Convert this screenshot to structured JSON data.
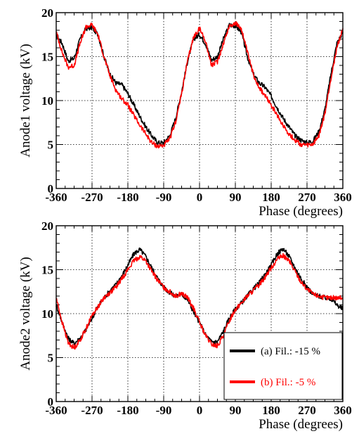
{
  "chart_data": [
    {
      "type": "line",
      "ylabel": "Anode1 voltage (kV)",
      "xlabel": "Phase (degrees)",
      "xlim": [
        -360,
        360
      ],
      "ylim": [
        0,
        20
      ],
      "xticks": [
        "-360",
        "-270",
        "-180",
        "-90",
        "0",
        "90",
        "180",
        "270",
        "360"
      ],
      "yticks": [
        "0",
        "5",
        "10",
        "15",
        "20"
      ],
      "grid": true,
      "series": [
        {
          "name": "(a) Fil.: -15 %",
          "color": "#000000",
          "x": [
            -360,
            -345,
            -330,
            -315,
            -300,
            -285,
            -270,
            -255,
            -240,
            -225,
            -210,
            -195,
            -180,
            -165,
            -150,
            -135,
            -120,
            -105,
            -90,
            -75,
            -60,
            -45,
            -30,
            -15,
            0,
            15,
            30,
            45,
            60,
            75,
            90,
            105,
            120,
            135,
            150,
            165,
            180,
            195,
            210,
            225,
            240,
            255,
            270,
            285,
            300,
            315,
            330,
            345,
            360
          ],
          "y": [
            17.5,
            16.5,
            14.5,
            14.8,
            17.0,
            18.2,
            18.3,
            17.5,
            15.0,
            13.0,
            12.0,
            11.8,
            10.8,
            9.5,
            8.2,
            7.0,
            6.0,
            5.2,
            5.2,
            6.0,
            8.0,
            11.0,
            14.5,
            17.0,
            17.5,
            16.5,
            14.6,
            15.0,
            17.0,
            18.6,
            18.5,
            17.8,
            15.0,
            13.0,
            12.0,
            11.5,
            10.5,
            9.2,
            8.0,
            7.0,
            6.0,
            5.5,
            5.2,
            5.4,
            6.5,
            9.0,
            13.0,
            16.5,
            17.8
          ]
        },
        {
          "name": "(b) Fil.: -5 %",
          "color": "#ff0000",
          "x": [
            -360,
            -345,
            -330,
            -315,
            -300,
            -285,
            -270,
            -255,
            -240,
            -225,
            -210,
            -195,
            -180,
            -165,
            -150,
            -135,
            -120,
            -105,
            -90,
            -75,
            -60,
            -45,
            -30,
            -15,
            0,
            15,
            30,
            45,
            60,
            75,
            90,
            105,
            120,
            135,
            150,
            165,
            180,
            195,
            210,
            225,
            240,
            255,
            270,
            285,
            300,
            315,
            330,
            345,
            360
          ],
          "y": [
            17.8,
            15.5,
            13.8,
            14.0,
            16.5,
            18.4,
            18.6,
            17.5,
            15.0,
            12.8,
            11.2,
            10.2,
            9.5,
            8.3,
            7.2,
            6.2,
            5.2,
            4.8,
            4.9,
            5.6,
            7.6,
            10.8,
            14.5,
            17.2,
            18.2,
            16.8,
            14.0,
            14.4,
            16.5,
            18.5,
            18.8,
            18.2,
            15.5,
            13.0,
            11.5,
            10.5,
            9.5,
            8.3,
            7.2,
            6.2,
            5.5,
            5.0,
            4.9,
            5.0,
            6.0,
            8.5,
            12.5,
            16.0,
            18.2
          ]
        }
      ]
    },
    {
      "type": "line",
      "ylabel": "Anode2 voltage (kV)",
      "xlabel": "Phase (degrees)",
      "xlim": [
        -360,
        360
      ],
      "ylim": [
        0,
        20
      ],
      "xticks": [
        "-360",
        "-270",
        "-180",
        "-90",
        "0",
        "90",
        "180",
        "270",
        "360"
      ],
      "yticks": [
        "0",
        "5",
        "10",
        "15",
        "20"
      ],
      "grid": true,
      "legend": "bottom-right",
      "series": [
        {
          "name": "(a) Fil.: -15 %",
          "color": "#000000",
          "x": [
            -360,
            -345,
            -330,
            -315,
            -300,
            -285,
            -270,
            -255,
            -240,
            -225,
            -210,
            -195,
            -180,
            -165,
            -150,
            -135,
            -120,
            -105,
            -90,
            -75,
            -60,
            -45,
            -30,
            -15,
            0,
            15,
            30,
            45,
            60,
            75,
            90,
            105,
            120,
            135,
            150,
            165,
            180,
            195,
            210,
            225,
            240,
            255,
            270,
            285,
            300,
            315,
            330,
            345,
            360
          ],
          "y": [
            11.0,
            9.0,
            7.2,
            6.6,
            7.2,
            8.2,
            9.5,
            10.8,
            11.8,
            12.6,
            13.3,
            14.3,
            15.5,
            16.8,
            17.3,
            16.5,
            15.2,
            14.0,
            13.0,
            12.4,
            12.0,
            12.2,
            11.6,
            10.2,
            9.0,
            7.6,
            6.8,
            6.8,
            8.0,
            9.5,
            10.5,
            11.2,
            12.0,
            12.8,
            13.5,
            14.5,
            15.5,
            16.8,
            17.4,
            16.5,
            15.2,
            14.0,
            13.0,
            12.2,
            12.0,
            11.8,
            11.7,
            11.0,
            10.5
          ]
        },
        {
          "name": "(b) Fil.: -5 %",
          "color": "#ff0000",
          "x": [
            -360,
            -345,
            -330,
            -315,
            -300,
            -285,
            -270,
            -255,
            -240,
            -225,
            -210,
            -195,
            -180,
            -165,
            -150,
            -135,
            -120,
            -105,
            -90,
            -75,
            -60,
            -45,
            -30,
            -15,
            0,
            15,
            30,
            45,
            60,
            75,
            90,
            105,
            120,
            135,
            150,
            165,
            180,
            195,
            210,
            225,
            240,
            255,
            270,
            285,
            300,
            315,
            330,
            345,
            360
          ],
          "y": [
            11.8,
            9.0,
            6.7,
            6.1,
            7.0,
            8.3,
            9.8,
            10.8,
            11.8,
            12.4,
            13.0,
            14.0,
            15.0,
            16.0,
            16.5,
            16.0,
            14.8,
            13.8,
            13.0,
            12.5,
            12.0,
            12.3,
            11.8,
            10.6,
            9.0,
            7.5,
            6.5,
            6.3,
            7.5,
            9.2,
            10.5,
            11.2,
            12.0,
            12.6,
            13.3,
            14.2,
            15.2,
            16.2,
            16.6,
            16.0,
            14.8,
            13.6,
            12.8,
            12.2,
            12.0,
            11.8,
            11.8,
            11.8,
            11.8
          ]
        }
      ]
    }
  ]
}
